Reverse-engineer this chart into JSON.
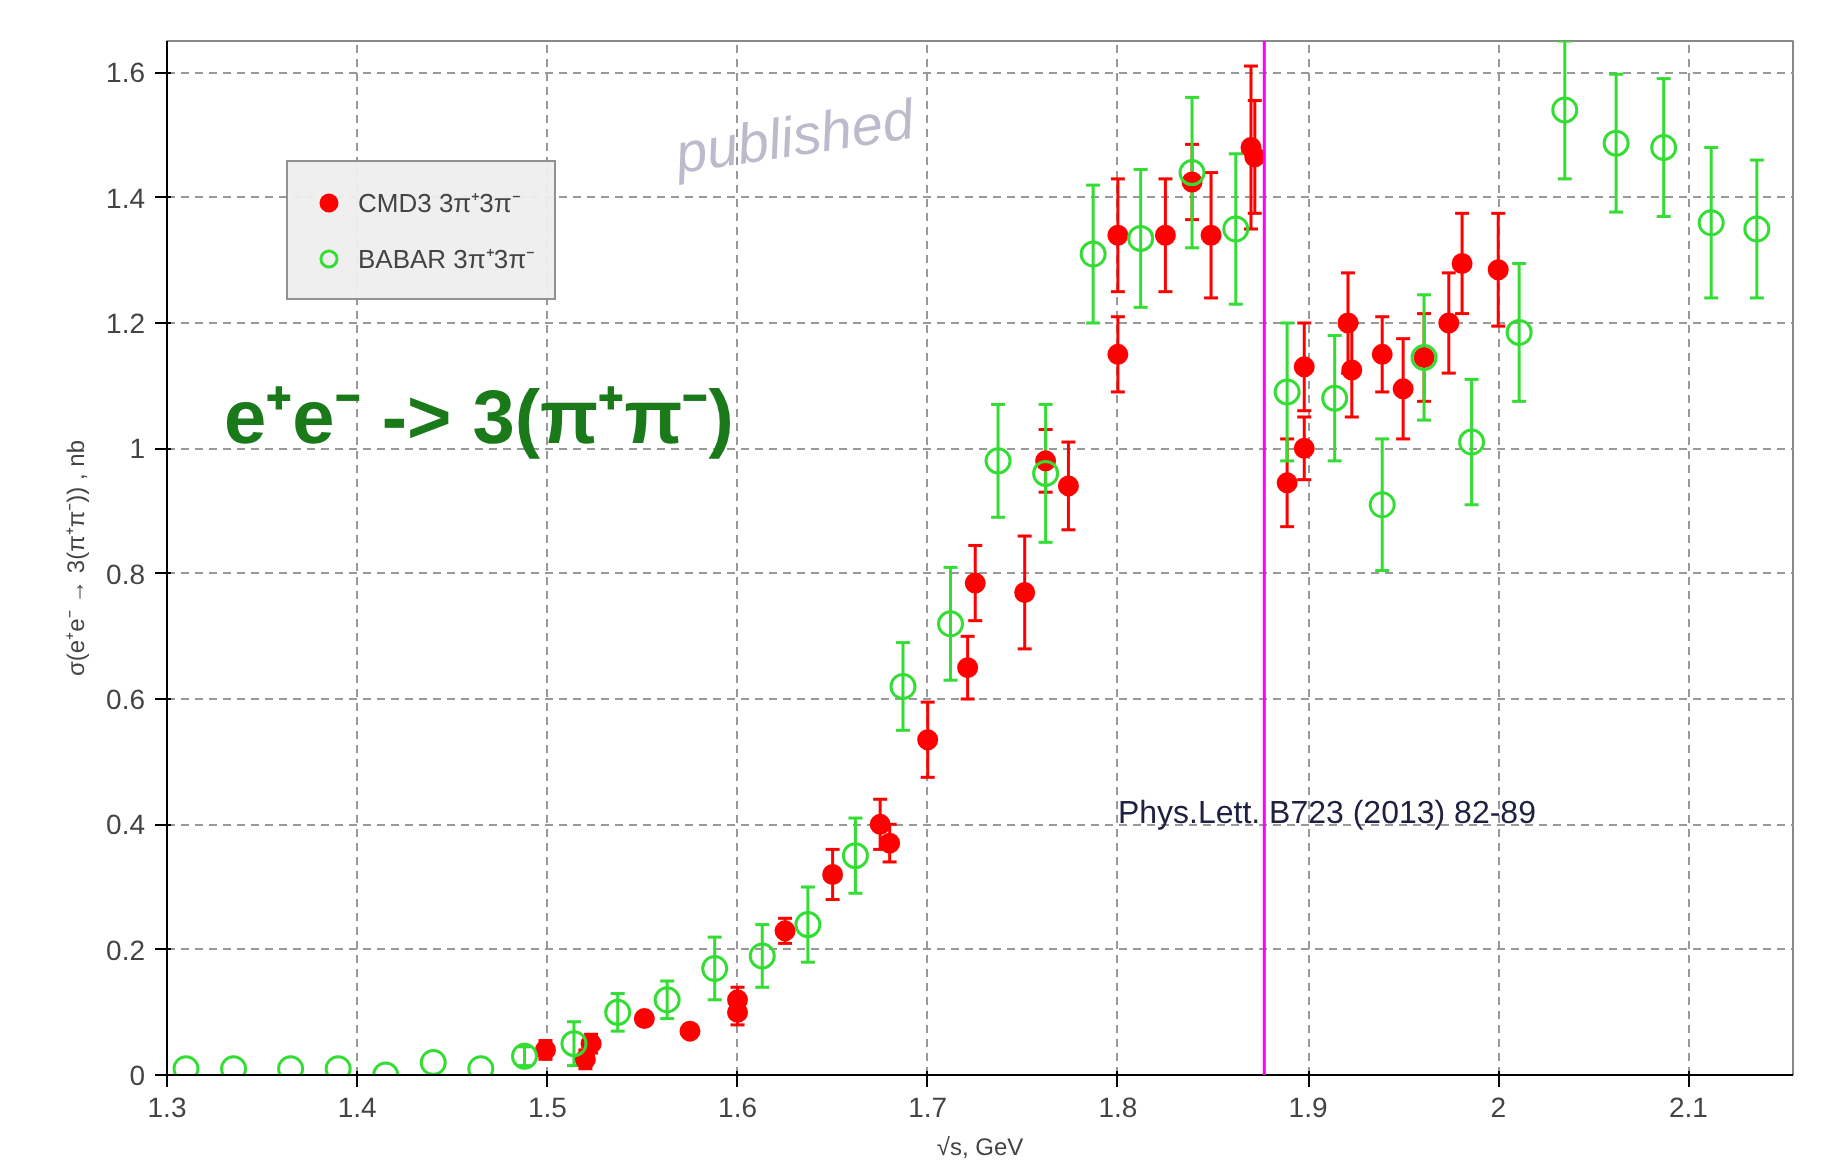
{
  "chart_data": {
    "type": "scatter",
    "xlabel": "√s, GeV",
    "ylabel": "σ(e⁺e⁻ → 3(π⁺π⁻)) , nb",
    "annotations": [
      "published",
      "e⁺e⁻ -> 3(π⁺π⁻)",
      "Phys.Lett. B723 (2013) 82-89"
    ],
    "xlim": [
      1.3,
      2.155
    ],
    "ylim": [
      0,
      1.65
    ],
    "xticks": [
      1.3,
      1.4,
      1.5,
      1.6,
      1.7,
      1.8,
      1.9,
      2.0,
      2.1
    ],
    "yticks": [
      0,
      0.2,
      0.4,
      0.6,
      0.8,
      1,
      1.2,
      1.4,
      1.6
    ],
    "grid": true,
    "legend": "top left",
    "marker": "circle",
    "ref_lines": [
      {
        "axis": "x",
        "value": 1.877,
        "label": null,
        "color": "#ff00ff"
      }
    ],
    "series": [
      {
        "name": "CMD3 3π⁺3π⁻",
        "color": "#ff0000",
        "x": [
          1.499,
          1.52,
          1.523,
          1.551,
          1.575,
          1.6,
          1.6,
          1.625,
          1.65,
          1.675,
          1.68,
          1.7,
          1.721,
          1.725,
          1.751,
          1.762,
          1.774,
          1.8,
          1.8,
          1.825,
          1.839,
          1.849,
          1.87,
          1.872,
          1.889,
          1.898,
          1.898,
          1.921,
          1.923,
          1.939,
          1.95,
          1.961,
          1.974,
          1.981,
          2.0
        ],
        "values": [
          0.04,
          0.025,
          0.05,
          0.09,
          0.07,
          0.1,
          0.12,
          0.23,
          0.32,
          0.4,
          0.37,
          0.535,
          0.65,
          0.785,
          0.77,
          0.98,
          0.94,
          1.15,
          1.34,
          1.34,
          1.425,
          1.34,
          1.48,
          1.465,
          0.945,
          1.0,
          1.13,
          1.2,
          1.125,
          1.15,
          1.095,
          1.145,
          1.2,
          1.295,
          1.285
        ],
        "errors": [
          0.015,
          0.015,
          0.015,
          0.01,
          0.01,
          0.02,
          0.02,
          0.02,
          0.04,
          0.04,
          0.03,
          0.06,
          0.05,
          0.06,
          0.09,
          0.05,
          0.07,
          0.06,
          0.09,
          0.09,
          0.06,
          0.1,
          0.13,
          0.09,
          0.07,
          0.05,
          0.07,
          0.08,
          0.075,
          0.06,
          0.08,
          0.07,
          0.08,
          0.08,
          0.09
        ]
      },
      {
        "name": "BABAR 3π⁺3π⁻",
        "color": "#33dd33",
        "x": [
          1.31,
          1.335,
          1.365,
          1.39,
          1.415,
          1.44,
          1.465,
          1.488,
          1.514,
          1.537,
          1.563,
          1.588,
          1.613,
          1.637,
          1.662,
          1.687,
          1.712,
          1.737,
          1.762,
          1.787,
          1.812,
          1.839,
          1.862,
          1.889,
          1.914,
          1.939,
          1.961,
          1.986,
          2.011,
          2.035,
          2.062,
          2.087,
          2.112,
          2.136
        ],
        "values": [
          0.01,
          0.01,
          0.01,
          0.01,
          0.0,
          0.02,
          0.01,
          0.03,
          0.05,
          0.1,
          0.12,
          0.17,
          0.19,
          0.24,
          0.35,
          0.62,
          0.72,
          0.98,
          0.96,
          1.31,
          1.335,
          1.44,
          1.35,
          1.09,
          1.08,
          0.91,
          1.145,
          1.01,
          1.185,
          1.54,
          1.487,
          1.48,
          1.36,
          1.35
        ],
        "errors": [
          null,
          null,
          null,
          null,
          null,
          null,
          null,
          0.015,
          0.035,
          0.03,
          0.03,
          0.05,
          0.05,
          0.06,
          0.06,
          0.07,
          0.09,
          0.09,
          0.11,
          0.11,
          0.11,
          0.12,
          0.12,
          0.11,
          0.1,
          0.105,
          0.1,
          0.1,
          0.11,
          0.11,
          0.11,
          0.11,
          0.12,
          0.11
        ]
      }
    ]
  }
}
